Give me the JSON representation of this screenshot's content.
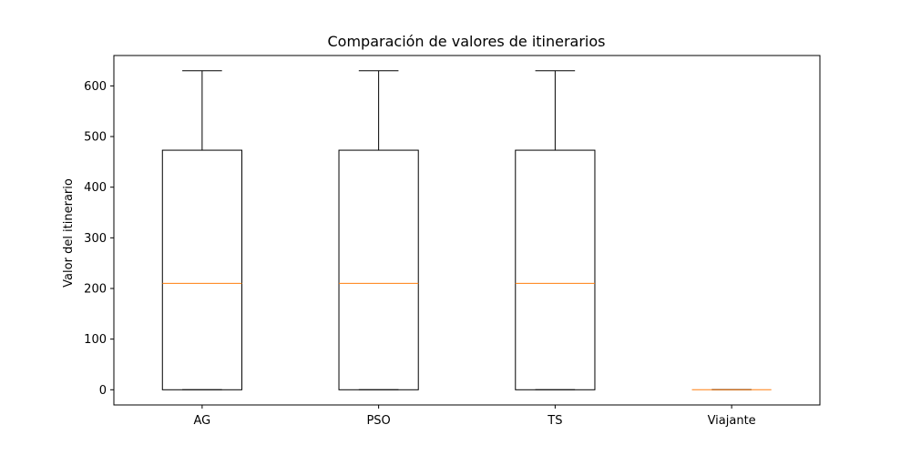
{
  "chart_data": {
    "type": "box",
    "title": "Comparación de valores de itinerarios",
    "xlabel": "",
    "ylabel": "Valor del itinerario",
    "ylim": [
      -30,
      660
    ],
    "yticks": [
      0,
      100,
      200,
      300,
      400,
      500,
      600
    ],
    "grid": false,
    "categories": [
      "AG",
      "PSO",
      "TS",
      "Viajante"
    ],
    "boxes": [
      {
        "category": "AG",
        "whisker_low": 0,
        "q1": 0,
        "median": 210,
        "q3": 473,
        "whisker_high": 630
      },
      {
        "category": "PSO",
        "whisker_low": 0,
        "q1": 0,
        "median": 210,
        "q3": 473,
        "whisker_high": 630
      },
      {
        "category": "TS",
        "whisker_low": 0,
        "q1": 0,
        "median": 210,
        "q3": 473,
        "whisker_high": 630
      },
      {
        "category": "Viajante",
        "whisker_low": 0,
        "q1": 0,
        "median": 0,
        "q3": 0,
        "whisker_high": 0
      }
    ],
    "colors": {
      "box": "#000000",
      "median": "#ff7f0e"
    }
  }
}
